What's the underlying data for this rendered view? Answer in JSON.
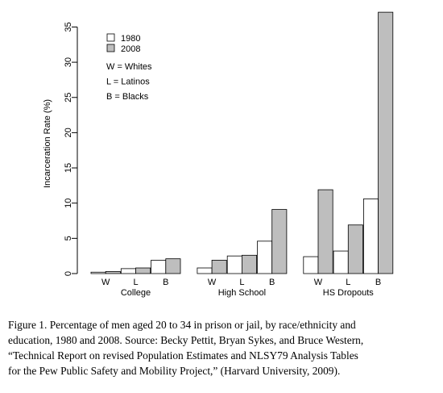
{
  "chart_data": {
    "type": "bar",
    "ylabel": "Incarceration Rate (%)",
    "ylim": [
      0,
      37
    ],
    "yticks": [
      0,
      5,
      10,
      15,
      20,
      25,
      30,
      35
    ],
    "groups": [
      {
        "name": "College",
        "categories": [
          "W",
          "L",
          "B"
        ]
      },
      {
        "name": "High School",
        "categories": [
          "W",
          "L",
          "B"
        ]
      },
      {
        "name": "HS Dropouts",
        "categories": [
          "W",
          "L",
          "B"
        ]
      }
    ],
    "series": [
      {
        "name": "1980",
        "color": "#ffffff",
        "values": [
          0.2,
          0.7,
          1.9,
          0.8,
          2.5,
          4.6,
          2.4,
          3.2,
          10.6
        ]
      },
      {
        "name": "2008",
        "color": "#bebebe",
        "values": [
          0.3,
          0.8,
          2.1,
          1.9,
          2.6,
          9.1,
          11.9,
          6.9,
          37.1
        ]
      }
    ],
    "key": [
      "W = Whites",
      "L = Latinos",
      "B = Blacks"
    ],
    "legend_position": "top-left"
  },
  "caption": [
    "Figure 1. Percentage of men aged 20 to 34 in prison or jail, by race/ethnicity and",
    "education, 1980 and 2008. Source: Becky Pettit, Bryan Sykes, and Bruce Western,",
    "“Technical Report on revised Population Estimates and NLSY79 Analysis Tables",
    "for the Pew Public Safety and Mobility Project,” (Harvard University, 2009)."
  ]
}
